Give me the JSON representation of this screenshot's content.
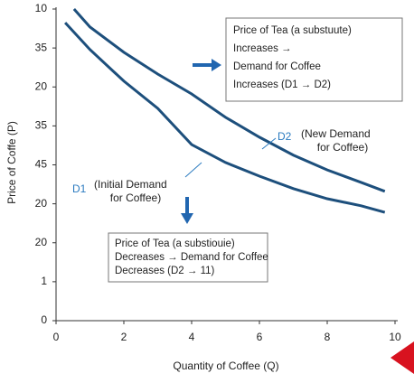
{
  "chart_data": {
    "type": "line",
    "xlabel": "Quantity of Coffee (Q)",
    "ylabel": "Price of Coffe (P)",
    "xlim": [
      0,
      10
    ],
    "xticks": [
      0,
      2,
      4,
      6,
      8,
      10
    ],
    "ylim": [
      0,
      8
    ],
    "yticks": [
      0,
      1,
      {
        "value": 2,
        "label": "20"
      },
      {
        "value": 3,
        "label": "20"
      },
      {
        "value": 4,
        "label": "45"
      },
      {
        "value": 5,
        "label": "35"
      },
      {
        "value": 6,
        "label": "20"
      },
      {
        "value": 7,
        "label": "35"
      },
      {
        "value": 8,
        "label": "10"
      }
    ],
    "series": [
      {
        "name": "D1",
        "description": [
          "(Initial Demand",
          "for Coffee)"
        ],
        "color": "#1d4f7c",
        "x": [
          0.27,
          1,
          2,
          3,
          4,
          5,
          6,
          7,
          8,
          9,
          9.7
        ],
        "values": [
          7.65,
          6.96,
          6.15,
          5.45,
          4.52,
          4.06,
          3.71,
          3.39,
          3.13,
          2.95,
          2.78
        ]
      },
      {
        "name": "D2",
        "description": [
          "(New Demand",
          "for Coffee)"
        ],
        "color": "#1d4f7c",
        "x": [
          0.53,
          1,
          2,
          3,
          4,
          5,
          6,
          7,
          8,
          9,
          9.7
        ],
        "values": [
          8.0,
          7.54,
          6.89,
          6.33,
          5.82,
          5.22,
          4.71,
          4.25,
          3.87,
          3.55,
          3.32
        ]
      }
    ],
    "annotations": [
      {
        "lines": [
          "Price of Tea (a substuute)",
          "Increases →",
          "Demand for Coffee",
          "Increases (D1 → D2)"
        ]
      },
      {
        "lines": [
          "Price of Tea (a substiouie)",
          "Decreases → Demand for Coffee",
          "Decreases (D2 → 11)"
        ]
      }
    ]
  }
}
